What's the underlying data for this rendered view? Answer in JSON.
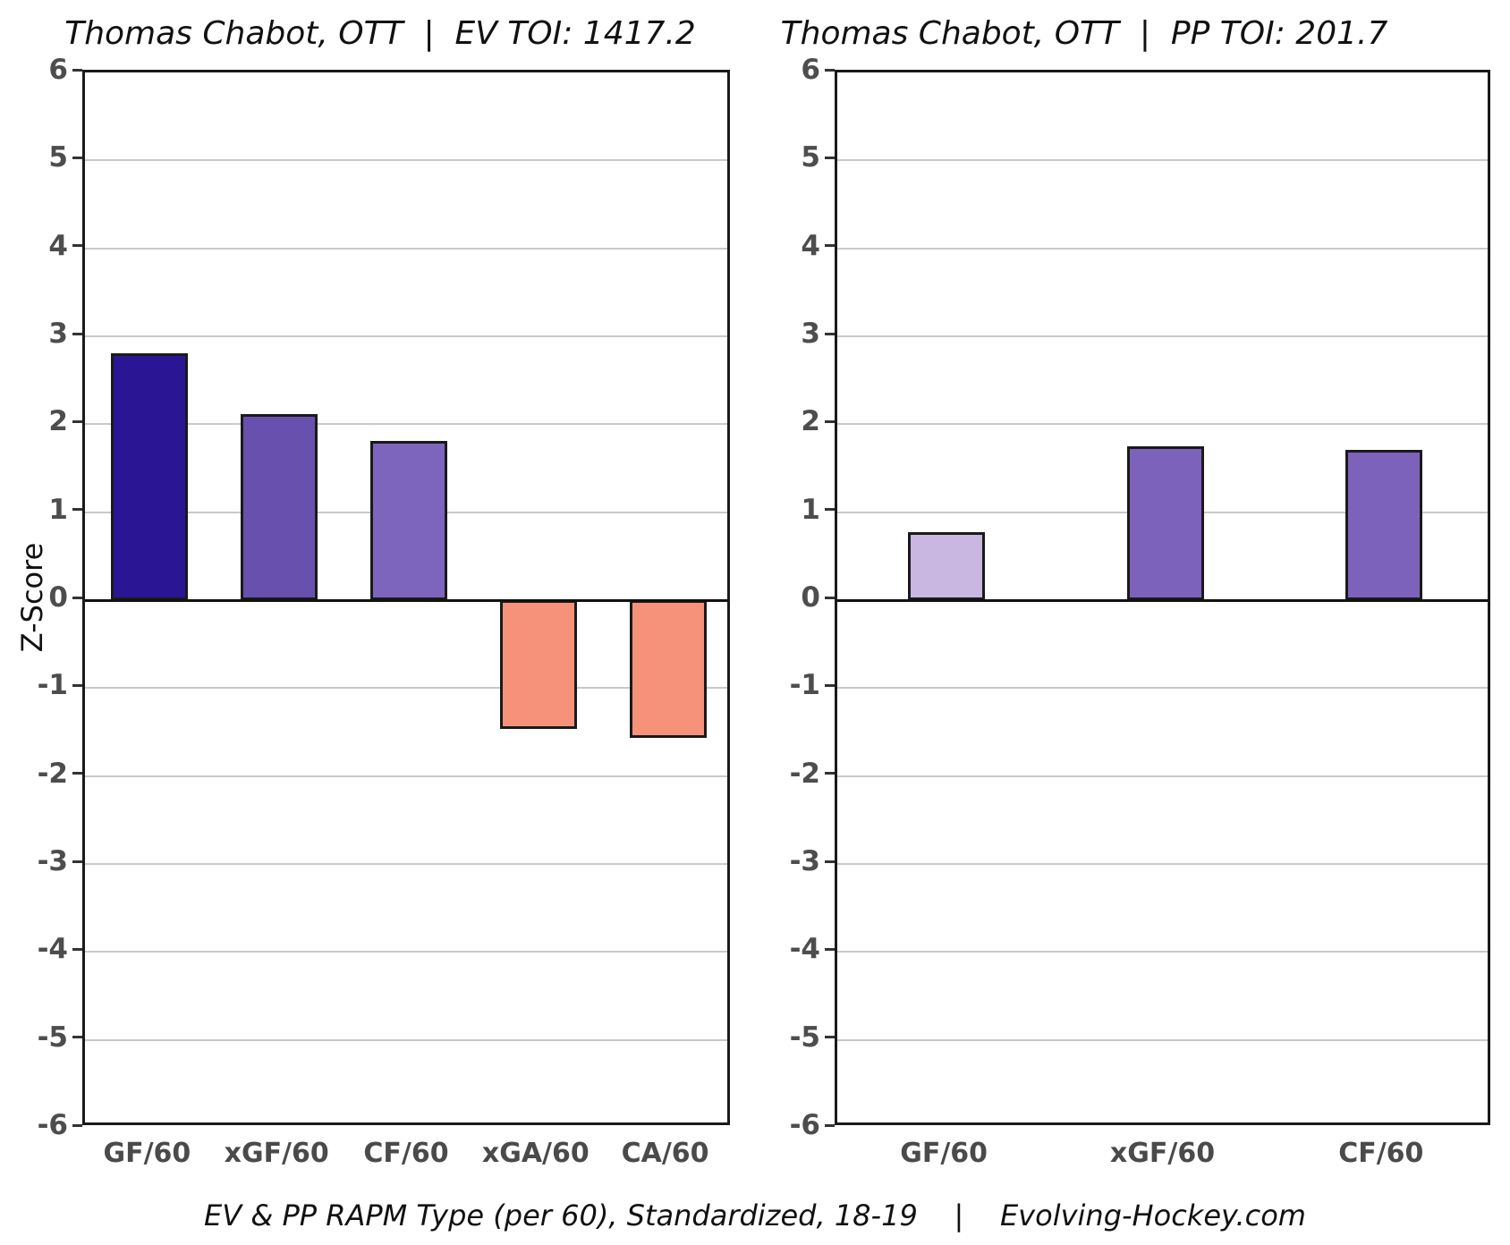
{
  "figure": {
    "footer": "EV & PP RAPM Type (per 60), Standardized, 18-19    |    Evolving-Hockey.com"
  },
  "colors": {
    "bar_outline": "#1a1a1a",
    "zero_line": "#111111",
    "gridline": "#c9c9c9",
    "axis_tick_text": "#4d4d4d",
    "ev_gf60": "#2a1594",
    "ev_xgf60": "#6850af",
    "ev_cf60": "#7d64bc",
    "ev_against": "#f6927a",
    "pp_gf60": "#c9b6e1",
    "pp_xgf60": "#7c62ba",
    "pp_cf60": "#7c62ba"
  },
  "chart_data": [
    {
      "type": "bar",
      "title": "Thomas Chabot, OTT  |  EV TOI: 1417.2",
      "categories": [
        "GF/60",
        "xGF/60",
        "CF/60",
        "xGA/60",
        "CA/60"
      ],
      "values": [
        2.81,
        2.12,
        1.81,
        -1.46,
        -1.57
      ],
      "bar_colors": [
        "#2a1594",
        "#6850af",
        "#7d64bc",
        "#f6927a",
        "#f6927a"
      ],
      "xlabel": "",
      "ylabel": "Z-Score",
      "ylim": [
        -6,
        6
      ],
      "ytick_step": 1,
      "grid": "major-horizontal",
      "legend": "none"
    },
    {
      "type": "bar",
      "title": "Thomas Chabot, OTT  |  PP TOI: 201.7",
      "categories": [
        "GF/60",
        "xGF/60",
        "CF/60"
      ],
      "values": [
        0.77,
        1.75,
        1.71
      ],
      "bar_colors": [
        "#c9b6e1",
        "#7c62ba",
        "#7c62ba"
      ],
      "xlabel": "",
      "ylabel": "",
      "ylim": [
        -6,
        6
      ],
      "ytick_step": 1,
      "grid": "major-horizontal",
      "legend": "none"
    }
  ]
}
